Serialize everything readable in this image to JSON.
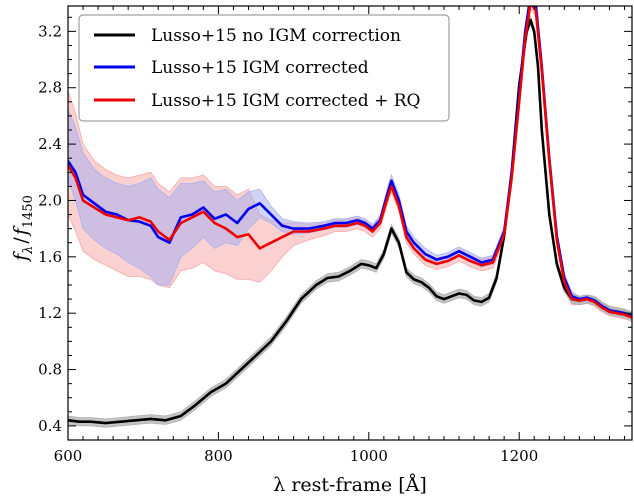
{
  "chart_data": {
    "type": "line",
    "title": "",
    "xlabel": "λ rest-frame [Å]",
    "ylabel_main": "f",
    "ylabel_sub1": "λ",
    "ylabel_slash": "/",
    "ylabel_sub2": "1450",
    "xlim": [
      600,
      1350
    ],
    "ylim": [
      0.3,
      3.38
    ],
    "xticks": [
      600,
      800,
      1000,
      1200
    ],
    "xtick_labels": [
      "600",
      "800",
      "1000",
      "1200"
    ],
    "yticks": [
      0.4,
      0.8,
      1.2,
      1.6,
      2.0,
      2.4,
      2.8,
      3.2
    ],
    "ytick_labels": [
      "0.4",
      "0.8",
      "1.2",
      "1.6",
      "2.0",
      "2.4",
      "2.8",
      "3.2"
    ],
    "grid": false,
    "legend_position": "top-left",
    "series": [
      {
        "name": "Lusso+15 no IGM correction",
        "color": "#000000",
        "band_color": "#b0b0b0",
        "band_halfwidth": 0.03,
        "x": [
          600,
          615,
          630,
          650,
          670,
          690,
          710,
          730,
          750,
          770,
          790,
          810,
          830,
          850,
          870,
          890,
          910,
          930,
          945,
          960,
          975,
          990,
          1000,
          1010,
          1020,
          1030,
          1040,
          1050,
          1060,
          1070,
          1080,
          1090,
          1100,
          1110,
          1120,
          1130,
          1140,
          1150,
          1160,
          1170,
          1180,
          1190,
          1200,
          1210,
          1215,
          1220,
          1225,
          1230,
          1240,
          1250,
          1260,
          1270,
          1280,
          1290,
          1300,
          1310,
          1320,
          1330,
          1340,
          1350
        ],
        "y": [
          0.44,
          0.43,
          0.43,
          0.42,
          0.43,
          0.44,
          0.45,
          0.44,
          0.47,
          0.55,
          0.64,
          0.7,
          0.8,
          0.9,
          1.0,
          1.14,
          1.3,
          1.4,
          1.45,
          1.46,
          1.5,
          1.55,
          1.54,
          1.52,
          1.62,
          1.8,
          1.7,
          1.49,
          1.44,
          1.42,
          1.38,
          1.32,
          1.3,
          1.32,
          1.34,
          1.33,
          1.29,
          1.28,
          1.31,
          1.45,
          1.75,
          2.2,
          2.82,
          3.2,
          3.28,
          3.2,
          2.95,
          2.5,
          1.9,
          1.55,
          1.38,
          1.3,
          1.29,
          1.3,
          1.29,
          1.25,
          1.22,
          1.21,
          1.2,
          1.18
        ]
      },
      {
        "name": "Lusso+15 IGM corrected",
        "color": "#0000ee",
        "band_color": "#aab0f0",
        "x": [
          600,
          610,
          620,
          635,
          650,
          665,
          680,
          695,
          710,
          720,
          735,
          750,
          765,
          780,
          795,
          810,
          825,
          840,
          855,
          870,
          885,
          900,
          920,
          940,
          955,
          970,
          985,
          995,
          1005,
          1015,
          1025,
          1030,
          1040,
          1050,
          1060,
          1075,
          1090,
          1105,
          1120,
          1135,
          1150,
          1165,
          1180,
          1190,
          1200,
          1208,
          1215,
          1222,
          1230,
          1240,
          1250,
          1260,
          1270,
          1280,
          1290,
          1300,
          1310,
          1320,
          1330,
          1340,
          1350
        ],
        "y": [
          2.28,
          2.2,
          2.04,
          1.98,
          1.92,
          1.9,
          1.86,
          1.85,
          1.82,
          1.74,
          1.7,
          1.88,
          1.9,
          1.95,
          1.87,
          1.9,
          1.84,
          1.94,
          1.98,
          1.9,
          1.82,
          1.8,
          1.8,
          1.82,
          1.84,
          1.84,
          1.86,
          1.84,
          1.8,
          1.86,
          2.05,
          2.14,
          2.0,
          1.78,
          1.7,
          1.62,
          1.58,
          1.6,
          1.64,
          1.6,
          1.56,
          1.58,
          1.78,
          2.2,
          2.75,
          3.2,
          3.45,
          3.4,
          2.95,
          2.3,
          1.75,
          1.45,
          1.32,
          1.3,
          1.31,
          1.29,
          1.25,
          1.22,
          1.21,
          1.2,
          1.18
        ],
        "lower": [
          2.15,
          2.0,
          1.8,
          1.72,
          1.66,
          1.62,
          1.56,
          1.52,
          1.46,
          1.4,
          1.4,
          1.6,
          1.66,
          1.74,
          1.66,
          1.7,
          1.68,
          1.8,
          1.88,
          1.84,
          1.78,
          1.76,
          1.77,
          1.79,
          1.81,
          1.81,
          1.83,
          1.81,
          1.77,
          1.83,
          2.01,
          2.1,
          1.96,
          1.74,
          1.66,
          1.58,
          1.55,
          1.57,
          1.61,
          1.57,
          1.53,
          1.55,
          1.75,
          2.17,
          2.72,
          3.17,
          3.42,
          3.37,
          2.92,
          2.27,
          1.72,
          1.42,
          1.29,
          1.28,
          1.29,
          1.27,
          1.23,
          1.2,
          1.19,
          1.18,
          1.16
        ],
        "upper": [
          2.65,
          2.52,
          2.34,
          2.22,
          2.16,
          2.12,
          2.1,
          2.12,
          2.16,
          2.08,
          2.02,
          2.12,
          2.12,
          2.14,
          2.06,
          2.08,
          2.0,
          2.06,
          2.08,
          1.96,
          1.87,
          1.85,
          1.84,
          1.85,
          1.87,
          1.87,
          1.89,
          1.87,
          1.83,
          1.89,
          2.09,
          2.18,
          2.04,
          1.82,
          1.74,
          1.66,
          1.61,
          1.63,
          1.67,
          1.63,
          1.59,
          1.61,
          1.81,
          2.23,
          2.78,
          3.23,
          3.48,
          3.43,
          2.98,
          2.33,
          1.78,
          1.48,
          1.35,
          1.32,
          1.33,
          1.31,
          1.27,
          1.24,
          1.23,
          1.22,
          1.2
        ]
      },
      {
        "name": "Lusso+15 IGM corrected + RQ",
        "color": "#ee0000",
        "band_color": "#f5aaaa",
        "x": [
          600,
          610,
          620,
          635,
          650,
          665,
          680,
          695,
          710,
          720,
          735,
          750,
          765,
          780,
          795,
          810,
          825,
          840,
          855,
          870,
          885,
          900,
          920,
          940,
          955,
          970,
          985,
          995,
          1005,
          1015,
          1025,
          1030,
          1040,
          1050,
          1060,
          1075,
          1090,
          1105,
          1120,
          1135,
          1150,
          1165,
          1180,
          1190,
          1200,
          1208,
          1215,
          1222,
          1230,
          1240,
          1250,
          1260,
          1270,
          1280,
          1290,
          1300,
          1310,
          1320,
          1330,
          1340,
          1350
        ],
        "y": [
          2.25,
          2.16,
          2.0,
          1.95,
          1.9,
          1.88,
          1.86,
          1.88,
          1.85,
          1.78,
          1.72,
          1.84,
          1.88,
          1.92,
          1.84,
          1.8,
          1.74,
          1.76,
          1.66,
          1.7,
          1.74,
          1.78,
          1.78,
          1.8,
          1.82,
          1.82,
          1.84,
          1.82,
          1.78,
          1.84,
          2.02,
          2.1,
          1.96,
          1.74,
          1.66,
          1.58,
          1.55,
          1.57,
          1.61,
          1.57,
          1.54,
          1.56,
          1.76,
          2.16,
          2.7,
          3.15,
          3.4,
          3.35,
          2.92,
          2.28,
          1.72,
          1.42,
          1.3,
          1.29,
          1.3,
          1.28,
          1.24,
          1.21,
          1.2,
          1.19,
          1.17
        ],
        "lower": [
          1.9,
          1.78,
          1.64,
          1.58,
          1.54,
          1.5,
          1.46,
          1.46,
          1.44,
          1.4,
          1.38,
          1.5,
          1.52,
          1.56,
          1.5,
          1.48,
          1.44,
          1.44,
          1.42,
          1.5,
          1.6,
          1.68,
          1.72,
          1.75,
          1.78,
          1.78,
          1.8,
          1.78,
          1.74,
          1.8,
          1.98,
          2.06,
          1.92,
          1.7,
          1.62,
          1.54,
          1.51,
          1.53,
          1.57,
          1.53,
          1.5,
          1.52,
          1.72,
          2.12,
          2.66,
          3.11,
          3.36,
          3.31,
          2.88,
          2.24,
          1.68,
          1.38,
          1.26,
          1.26,
          1.27,
          1.25,
          1.21,
          1.18,
          1.17,
          1.16,
          1.14
        ],
        "upper": [
          2.78,
          2.62,
          2.4,
          2.28,
          2.22,
          2.18,
          2.16,
          2.18,
          2.2,
          2.12,
          2.06,
          2.16,
          2.16,
          2.18,
          2.1,
          2.1,
          2.04,
          2.08,
          1.9,
          1.86,
          1.84,
          1.84,
          1.83,
          1.84,
          1.86,
          1.86,
          1.88,
          1.86,
          1.82,
          1.88,
          2.06,
          2.14,
          2.0,
          1.78,
          1.7,
          1.62,
          1.59,
          1.61,
          1.65,
          1.61,
          1.58,
          1.6,
          1.8,
          2.2,
          2.74,
          3.19,
          3.44,
          3.39,
          2.96,
          2.32,
          1.76,
          1.46,
          1.34,
          1.32,
          1.33,
          1.31,
          1.27,
          1.24,
          1.23,
          1.22,
          1.2
        ]
      }
    ]
  }
}
